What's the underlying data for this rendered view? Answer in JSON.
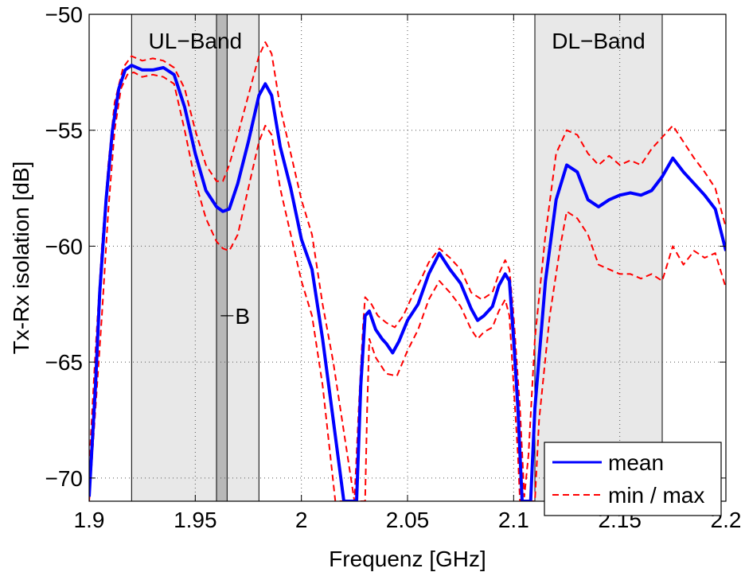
{
  "chart_data": {
    "type": "line",
    "xlabel": "Frequenz [GHz]",
    "ylabel": "Tx-Rx isolation [dB]",
    "xlim": [
      1.9,
      2.2
    ],
    "ylim": [
      -71,
      -50
    ],
    "xticks": [
      {
        "value": 1.9,
        "label": "1.9"
      },
      {
        "value": 1.95,
        "label": "1.95"
      },
      {
        "value": 2.0,
        "label": "2"
      },
      {
        "value": 2.05,
        "label": "2.05"
      },
      {
        "value": 2.1,
        "label": "2.1"
      },
      {
        "value": 2.15,
        "label": "2.15"
      },
      {
        "value": 2.2,
        "label": "2.2"
      }
    ],
    "yticks": [
      {
        "value": -50,
        "label": "−50"
      },
      {
        "value": -55,
        "label": "−55"
      },
      {
        "value": -60,
        "label": "−60"
      },
      {
        "value": -65,
        "label": "−65"
      },
      {
        "value": -70,
        "label": "−70"
      }
    ],
    "grid": true,
    "legend_position": "bottom-right",
    "bands": [
      {
        "label": "UL−Band",
        "x0": 1.92,
        "x1": 1.98,
        "label_at": 1.95,
        "color": "#e8e8e8"
      },
      {
        "label": "DL−Band",
        "x0": 2.11,
        "x1": 2.17,
        "label_at": 2.14,
        "color": "#e8e8e8"
      }
    ],
    "marker_band": {
      "label": "B",
      "x0": 1.96,
      "x1": 1.965,
      "color": "#b8b8b8",
      "label_at": [
        1.973,
        -63
      ]
    },
    "series": [
      {
        "name": "mean",
        "style": "solid",
        "color": "#0000ff",
        "points": [
          [
            1.9,
            -70.8
          ],
          [
            1.903,
            -66
          ],
          [
            1.905,
            -62
          ],
          [
            1.908,
            -58
          ],
          [
            1.911,
            -55
          ],
          [
            1.914,
            -53.2
          ],
          [
            1.917,
            -52.4
          ],
          [
            1.92,
            -52.2
          ],
          [
            1.925,
            -52.4
          ],
          [
            1.93,
            -52.4
          ],
          [
            1.935,
            -52.3
          ],
          [
            1.94,
            -52.6
          ],
          [
            1.945,
            -54
          ],
          [
            1.95,
            -56
          ],
          [
            1.955,
            -57.6
          ],
          [
            1.96,
            -58.3
          ],
          [
            1.963,
            -58.5
          ],
          [
            1.966,
            -58.4
          ],
          [
            1.97,
            -57.3
          ],
          [
            1.975,
            -55.5
          ],
          [
            1.98,
            -53.5
          ],
          [
            1.983,
            -53
          ],
          [
            1.986,
            -53.5
          ],
          [
            1.99,
            -55.7
          ],
          [
            1.995,
            -57.5
          ],
          [
            2.0,
            -59.7
          ],
          [
            2.005,
            -61
          ],
          [
            2.01,
            -64
          ],
          [
            2.015,
            -67.5
          ],
          [
            2.02,
            -71
          ],
          [
            2.026,
            -71
          ],
          [
            2.028,
            -66
          ],
          [
            2.03,
            -63
          ],
          [
            2.032,
            -62.8
          ],
          [
            2.035,
            -63.6
          ],
          [
            2.038,
            -64
          ],
          [
            2.04,
            -64.2
          ],
          [
            2.043,
            -64.6
          ],
          [
            2.046,
            -64.1
          ],
          [
            2.05,
            -63.2
          ],
          [
            2.055,
            -62.5
          ],
          [
            2.06,
            -61.2
          ],
          [
            2.065,
            -60.3
          ],
          [
            2.07,
            -61
          ],
          [
            2.075,
            -61.6
          ],
          [
            2.08,
            -62.7
          ],
          [
            2.083,
            -63.2
          ],
          [
            2.086,
            -63
          ],
          [
            2.09,
            -62.6
          ],
          [
            2.093,
            -61.7
          ],
          [
            2.096,
            -61.2
          ],
          [
            2.098,
            -61.5
          ],
          [
            2.1,
            -64
          ],
          [
            2.102,
            -67
          ],
          [
            2.104,
            -71
          ],
          [
            2.108,
            -71
          ],
          [
            2.11,
            -67
          ],
          [
            2.115,
            -61.5
          ],
          [
            2.12,
            -58
          ],
          [
            2.125,
            -56.5
          ],
          [
            2.13,
            -56.8
          ],
          [
            2.135,
            -58
          ],
          [
            2.14,
            -58.3
          ],
          [
            2.145,
            -58
          ],
          [
            2.15,
            -57.8
          ],
          [
            2.155,
            -57.7
          ],
          [
            2.16,
            -57.8
          ],
          [
            2.165,
            -57.6
          ],
          [
            2.17,
            -57
          ],
          [
            2.175,
            -56.2
          ],
          [
            2.18,
            -56.8
          ],
          [
            2.185,
            -57.3
          ],
          [
            2.19,
            -57.8
          ],
          [
            2.195,
            -58.4
          ],
          [
            2.2,
            -60.2
          ]
        ]
      },
      {
        "name": "min / max",
        "style": "dashed",
        "color": "#ff0000",
        "points": [
          [
            1.9,
            -69.5
          ],
          [
            1.903,
            -64.5
          ],
          [
            1.906,
            -60
          ],
          [
            1.909,
            -56.5
          ],
          [
            1.912,
            -53.8
          ],
          [
            1.916,
            -52.3
          ],
          [
            1.92,
            -51.8
          ],
          [
            1.925,
            -52
          ],
          [
            1.93,
            -51.9
          ],
          [
            1.935,
            -52
          ],
          [
            1.94,
            -52.3
          ],
          [
            1.945,
            -53.2
          ],
          [
            1.95,
            -55
          ],
          [
            1.955,
            -56.5
          ],
          [
            1.96,
            -57.2
          ],
          [
            1.963,
            -57.2
          ],
          [
            1.966,
            -56.5
          ],
          [
            1.97,
            -55.2
          ],
          [
            1.975,
            -53.5
          ],
          [
            1.98,
            -51.8
          ],
          [
            1.983,
            -51.2
          ],
          [
            1.986,
            -51.7
          ],
          [
            1.99,
            -54
          ],
          [
            1.995,
            -56
          ],
          [
            2.0,
            -58
          ],
          [
            2.005,
            -59.5
          ],
          [
            2.01,
            -62.5
          ],
          [
            2.015,
            -65
          ],
          [
            2.02,
            -68
          ],
          [
            2.025,
            -71
          ],
          [
            2.027,
            -67
          ],
          [
            2.029,
            -63.5
          ],
          [
            2.03,
            -62.2
          ],
          [
            2.033,
            -62.5
          ],
          [
            2.036,
            -63
          ],
          [
            2.04,
            -63.3
          ],
          [
            2.044,
            -63.5
          ],
          [
            2.048,
            -63
          ],
          [
            2.052,
            -62.2
          ],
          [
            2.056,
            -61.5
          ],
          [
            2.06,
            -60.7
          ],
          [
            2.065,
            -60.1
          ],
          [
            2.07,
            -60.5
          ],
          [
            2.075,
            -61
          ],
          [
            2.08,
            -62
          ],
          [
            2.085,
            -62.3
          ],
          [
            2.09,
            -62
          ],
          [
            2.093,
            -61.2
          ],
          [
            2.096,
            -60.6
          ],
          [
            2.098,
            -61
          ],
          [
            2.1,
            -63
          ],
          [
            2.103,
            -67
          ],
          [
            2.105,
            -70.8
          ],
          [
            2.107,
            -69
          ],
          [
            2.11,
            -64
          ],
          [
            2.115,
            -59.5
          ],
          [
            2.12,
            -56
          ],
          [
            2.125,
            -55
          ],
          [
            2.13,
            -55.2
          ],
          [
            2.135,
            -56
          ],
          [
            2.14,
            -56.5
          ],
          [
            2.145,
            -56.1
          ],
          [
            2.15,
            -56.5
          ],
          [
            2.155,
            -56.3
          ],
          [
            2.16,
            -56.5
          ],
          [
            2.165,
            -55.8
          ],
          [
            2.17,
            -55.3
          ],
          [
            2.175,
            -54.8
          ],
          [
            2.18,
            -55.5
          ],
          [
            2.185,
            -56.2
          ],
          [
            2.19,
            -56.8
          ],
          [
            2.195,
            -57.5
          ],
          [
            2.2,
            -59.2
          ]
        ]
      },
      {
        "name": "min",
        "style": "dashed",
        "color": "#ff0000",
        "legend": false,
        "points": [
          [
            1.9,
            -71
          ],
          [
            1.903,
            -67
          ],
          [
            1.906,
            -63
          ],
          [
            1.909,
            -58.5
          ],
          [
            1.912,
            -55
          ],
          [
            1.915,
            -53.2
          ],
          [
            1.918,
            -52.6
          ],
          [
            1.921,
            -52.5
          ],
          [
            1.925,
            -52.7
          ],
          [
            1.93,
            -52.6
          ],
          [
            1.935,
            -52.7
          ],
          [
            1.94,
            -53
          ],
          [
            1.945,
            -55
          ],
          [
            1.95,
            -57.2
          ],
          [
            1.955,
            -58.8
          ],
          [
            1.96,
            -59.8
          ],
          [
            1.963,
            -60.1
          ],
          [
            1.966,
            -60.2
          ],
          [
            1.97,
            -59.5
          ],
          [
            1.975,
            -57.5
          ],
          [
            1.98,
            -55.5
          ],
          [
            1.983,
            -54.8
          ],
          [
            1.986,
            -55.2
          ],
          [
            1.99,
            -57.5
          ],
          [
            1.995,
            -59.5
          ],
          [
            2.0,
            -61.5
          ],
          [
            2.005,
            -63
          ],
          [
            2.01,
            -66
          ],
          [
            2.013,
            -68.5
          ],
          [
            2.016,
            -71
          ],
          [
            2.03,
            -71
          ],
          [
            2.031,
            -67
          ],
          [
            2.032,
            -64
          ],
          [
            2.035,
            -64.8
          ],
          [
            2.04,
            -65.5
          ],
          [
            2.045,
            -65.6
          ],
          [
            2.05,
            -64.5
          ],
          [
            2.055,
            -63.6
          ],
          [
            2.06,
            -62.3
          ],
          [
            2.065,
            -61.5
          ],
          [
            2.07,
            -62
          ],
          [
            2.075,
            -62.6
          ],
          [
            2.08,
            -63.6
          ],
          [
            2.083,
            -64
          ],
          [
            2.086,
            -63.7
          ],
          [
            2.09,
            -63.5
          ],
          [
            2.093,
            -62.8
          ],
          [
            2.096,
            -62.3
          ],
          [
            2.098,
            -63
          ],
          [
            2.1,
            -66
          ],
          [
            2.102,
            -69
          ],
          [
            2.103,
            -71
          ],
          [
            2.11,
            -71
          ],
          [
            2.112,
            -67.5
          ],
          [
            2.117,
            -63
          ],
          [
            2.122,
            -60
          ],
          [
            2.125,
            -58.5
          ],
          [
            2.13,
            -58.8
          ],
          [
            2.135,
            -59.5
          ],
          [
            2.14,
            -60.8
          ],
          [
            2.145,
            -61
          ],
          [
            2.15,
            -61.2
          ],
          [
            2.155,
            -61.2
          ],
          [
            2.16,
            -61.4
          ],
          [
            2.165,
            -61.2
          ],
          [
            2.17,
            -61.5
          ],
          [
            2.175,
            -60
          ],
          [
            2.18,
            -60.8
          ],
          [
            2.185,
            -60.2
          ],
          [
            2.19,
            -60.5
          ],
          [
            2.195,
            -60.3
          ],
          [
            2.2,
            -61.8
          ]
        ]
      }
    ]
  }
}
